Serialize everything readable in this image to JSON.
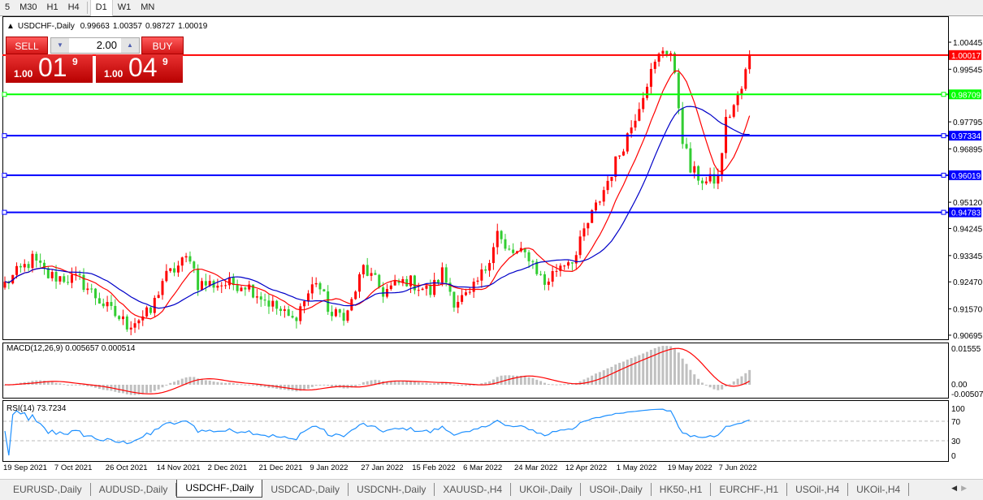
{
  "toolbar": {
    "timeframes": [
      "5",
      "M30",
      "H1",
      "H4",
      "D1",
      "W1",
      "MN"
    ],
    "selected": "D1"
  },
  "chart_title": {
    "symbol": "USDCHF-,Daily",
    "open": "0.99663",
    "high": "1.00357",
    "low": "0.98727",
    "close": "1.00019"
  },
  "trade_panel": {
    "sell_label": "SELL",
    "buy_label": "BUY",
    "volume": "2.00",
    "sell_prefix": "1.00",
    "sell_big": "01",
    "sell_sup": "9",
    "buy_prefix": "1.00",
    "buy_big": "04",
    "buy_sup": "9"
  },
  "price_axis": {
    "ticks": [
      "1.00445",
      "0.99545",
      "0.97795",
      "0.96895",
      "0.95120",
      "0.94245",
      "0.93345",
      "0.92470",
      "0.91570",
      "0.90695"
    ]
  },
  "levels": [
    {
      "price": "1.00017",
      "color": "#ff0000"
    },
    {
      "price": "0.98709",
      "color": "#00ff00"
    },
    {
      "price": "0.97334",
      "color": "#0000ff"
    },
    {
      "price": "0.96019",
      "color": "#0000ff"
    },
    {
      "price": "0.94783",
      "color": "#0000ff"
    }
  ],
  "macd": {
    "label": "MACD(12,26,9) 0.005657 0.000514",
    "ticks": [
      "0.01555",
      "0.00",
      "-0.005075"
    ]
  },
  "rsi": {
    "label": "RSI(14) 73.7234",
    "ticks": [
      "100",
      "70",
      "30",
      "0"
    ]
  },
  "dates": [
    "19 Sep 2021",
    "7 Oct 2021",
    "26 Oct 2021",
    "14 Nov 2021",
    "2 Dec 2021",
    "21 Dec 2021",
    "9 Jan 2022",
    "27 Jan 2022",
    "15 Feb 2022",
    "6 Mar 2022",
    "24 Mar 2022",
    "12 Apr 2022",
    "1 May 2022",
    "19 May 2022",
    "7 Jun 2022"
  ],
  "colors": {
    "up_candle": "#ff0000",
    "down_candle": "#32cd32",
    "ma_fast": "#ff0000",
    "ma_slow": "#0000c8",
    "macd_hist": "#c0c0c0",
    "macd_signal": "#ff0000",
    "rsi_line": "#1e90ff"
  },
  "chart_data": {
    "type": "candlestick",
    "symbol": "USDCHF-",
    "timeframe": "Daily",
    "ylim": [
      0.90695,
      1.00445
    ],
    "close_waypoints": [
      [
        0,
        0.924
      ],
      [
        7,
        0.9321
      ],
      [
        11,
        0.9267
      ],
      [
        19,
        0.9253
      ],
      [
        26,
        0.9159
      ],
      [
        31,
        0.9105
      ],
      [
        37,
        0.9145
      ],
      [
        40,
        0.9253
      ],
      [
        47,
        0.9334
      ],
      [
        49,
        0.924
      ],
      [
        61,
        0.924
      ],
      [
        65,
        0.9199
      ],
      [
        73,
        0.9118
      ],
      [
        79,
        0.9253
      ],
      [
        83,
        0.9132
      ],
      [
        87,
        0.9145
      ],
      [
        91,
        0.9294
      ],
      [
        96,
        0.9213
      ],
      [
        102,
        0.9253
      ],
      [
        108,
        0.9213
      ],
      [
        111,
        0.928
      ],
      [
        114,
        0.9186
      ],
      [
        118,
        0.9199
      ],
      [
        122,
        0.9294
      ],
      [
        125,
        0.9415
      ],
      [
        127,
        0.9348
      ],
      [
        133,
        0.9334
      ],
      [
        137,
        0.924
      ],
      [
        141,
        0.9307
      ],
      [
        145,
        0.9334
      ],
      [
        147,
        0.9415
      ],
      [
        151,
        0.9523
      ],
      [
        155,
        0.9645
      ],
      [
        159,
        0.9766
      ],
      [
        163,
        0.9915
      ],
      [
        167,
        1.0023
      ],
      [
        169,
        1.0009
      ],
      [
        171,
        0.9834
      ],
      [
        172,
        0.9726
      ],
      [
        174,
        0.9618
      ],
      [
        178,
        0.9577
      ],
      [
        181,
        0.9591
      ],
      [
        183,
        0.978
      ],
      [
        185,
        0.9834
      ],
      [
        187,
        0.9888
      ],
      [
        189,
        1.00019
      ]
    ]
  },
  "tabs": [
    "EURUSD-,Daily",
    "AUDUSD-,Daily",
    "USDCHF-,Daily",
    "USDCAD-,Daily",
    "USDCNH-,Daily",
    "XAUUSD-,H4",
    "UKOil-,Daily",
    "USOil-,Daily",
    "HK50-,H1",
    "EURCHF-,H1",
    "USOil-,H4",
    "UKOil-,H4"
  ],
  "active_tab": "USDCHF-,Daily"
}
